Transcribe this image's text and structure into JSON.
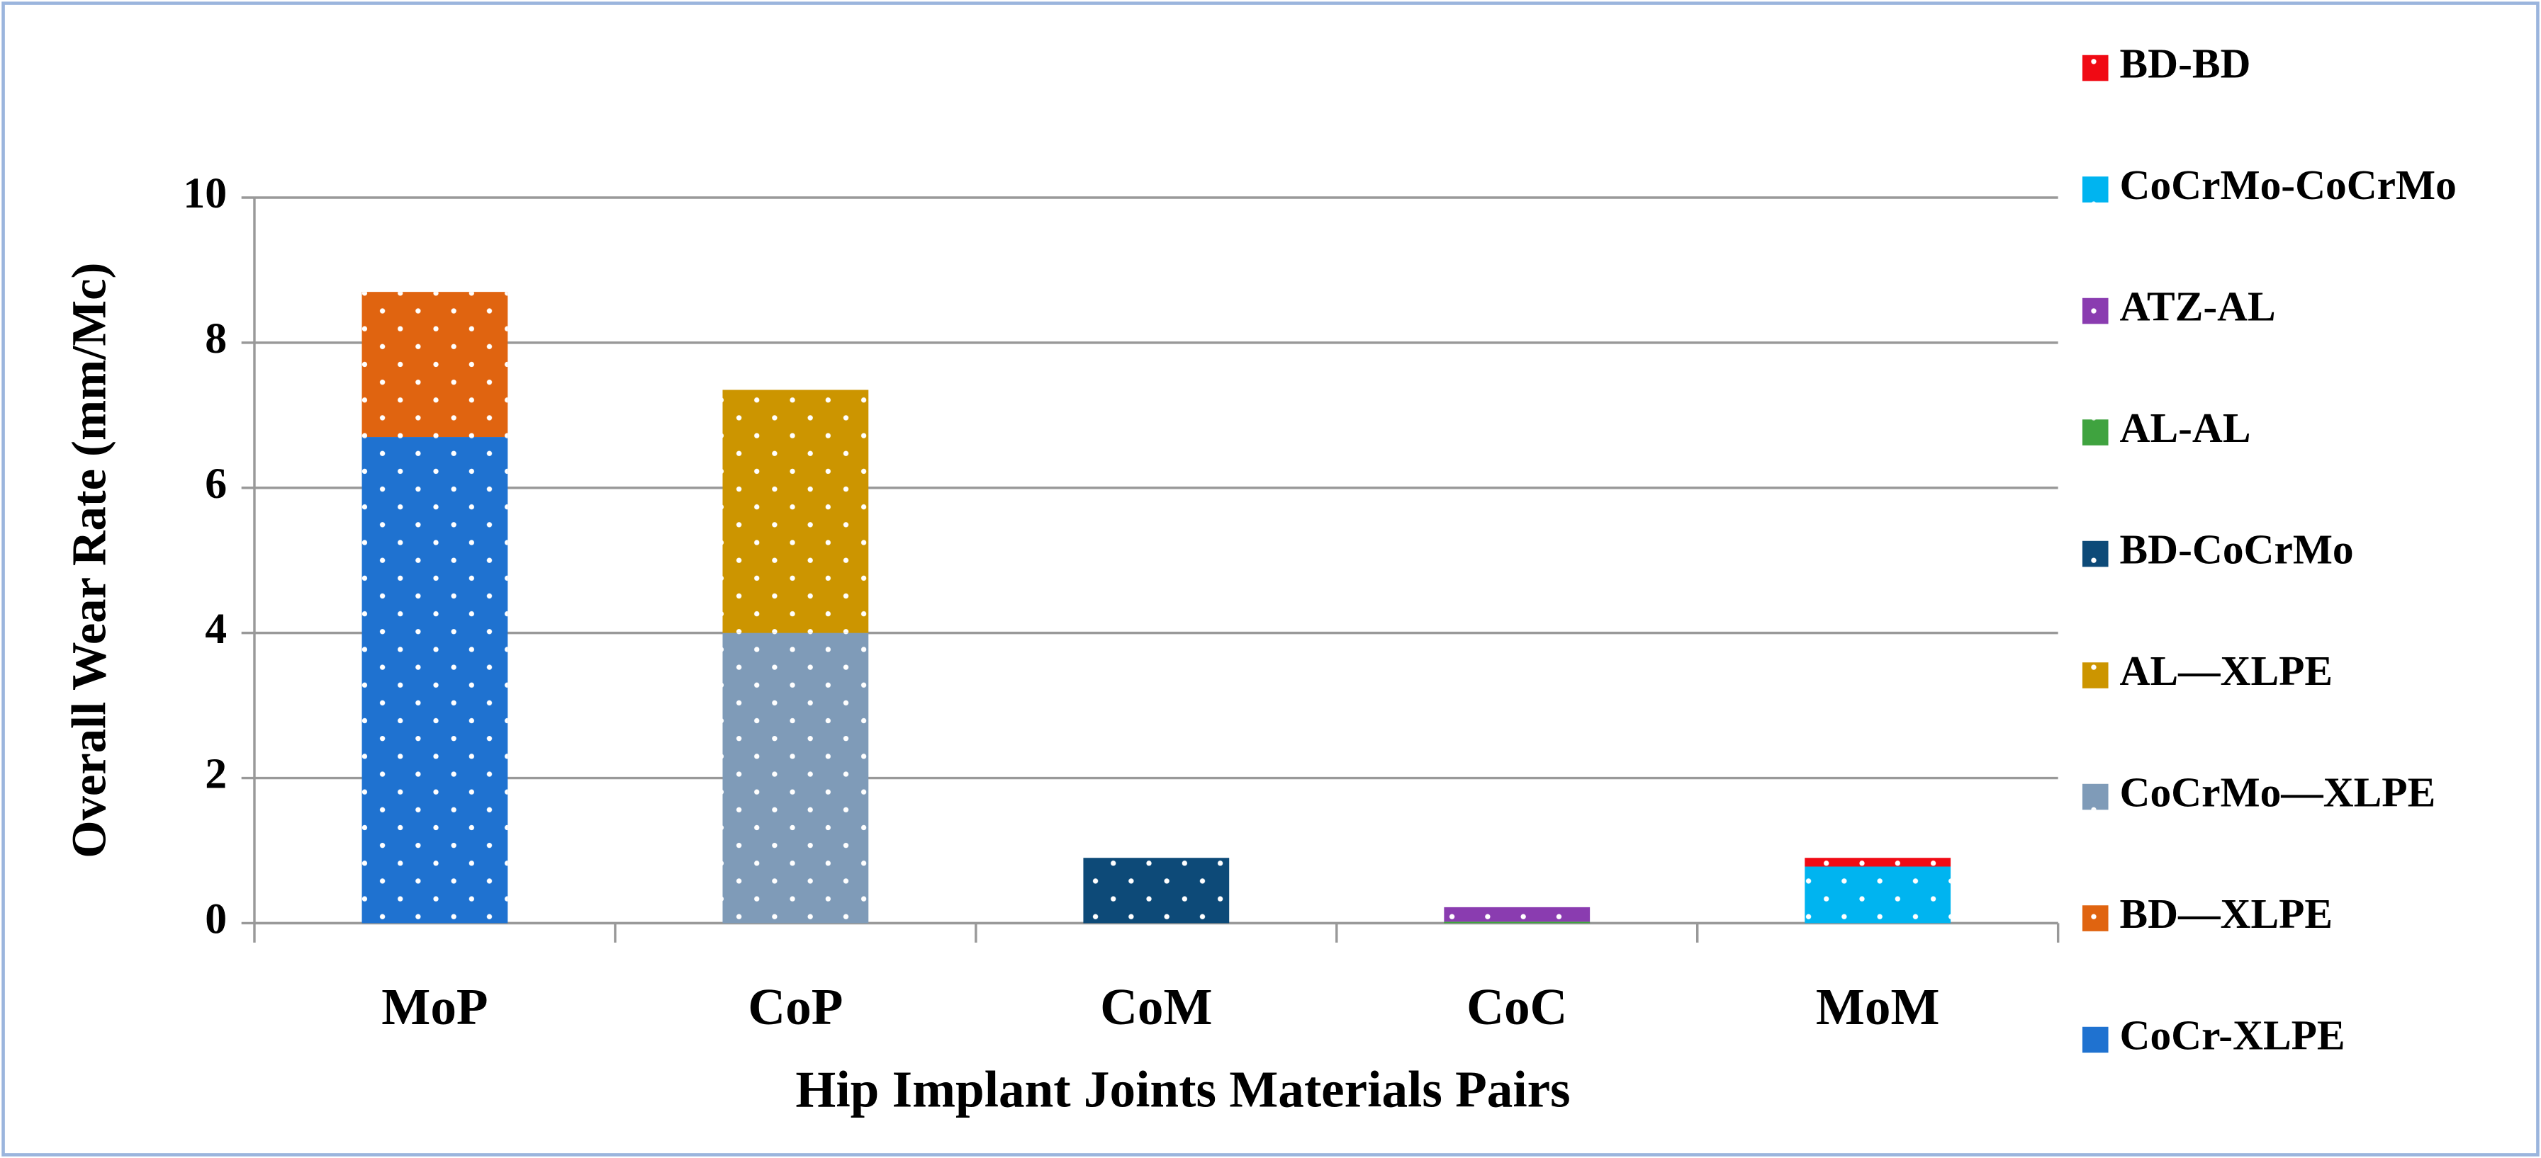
{
  "chart_data": {
    "type": "bar",
    "stacked": true,
    "x_label": "Hip Implant Joints Materials Pairs",
    "y_label": "Overall Wear Rate (mm/Mc)",
    "categories": [
      "MoP",
      "CoP",
      "CoM",
      "CoC",
      "MoM"
    ],
    "ylim": [
      0,
      10
    ],
    "yticks": [
      0,
      2,
      4,
      6,
      8,
      10
    ],
    "grid": true,
    "legend": "right",
    "series": [
      {
        "name": "CoCr-XLPE",
        "color": "#1f72d0",
        "values": [
          6.7,
          null,
          null,
          null,
          null
        ]
      },
      {
        "name": "BD—XLPE",
        "color": "#e06410",
        "values": [
          2.0,
          null,
          null,
          null,
          null
        ]
      },
      {
        "name": "CoCrMo—XLPE",
        "color": "#7f9bb8",
        "values": [
          null,
          4.0,
          null,
          null,
          null
        ]
      },
      {
        "name": "AL—XLPE",
        "color": "#cc9500",
        "values": [
          null,
          3.35,
          null,
          null,
          null
        ]
      },
      {
        "name": "BD-CoCrMo",
        "color": "#0d4a78",
        "values": [
          null,
          null,
          0.9,
          null,
          null
        ]
      },
      {
        "name": "AL-AL",
        "color": "#3fa33f",
        "values": [
          null,
          null,
          null,
          0.02,
          null
        ]
      },
      {
        "name": "ATZ-AL",
        "color": "#8a3cb0",
        "values": [
          null,
          null,
          null,
          0.2,
          null
        ]
      },
      {
        "name": "CoCrMo-CoCrMo",
        "color": "#00b4f0",
        "values": [
          null,
          null,
          null,
          null,
          0.78
        ]
      },
      {
        "name": "BD-BD",
        "color": "#f00a14",
        "values": [
          null,
          null,
          null,
          null,
          0.12
        ]
      }
    ]
  }
}
